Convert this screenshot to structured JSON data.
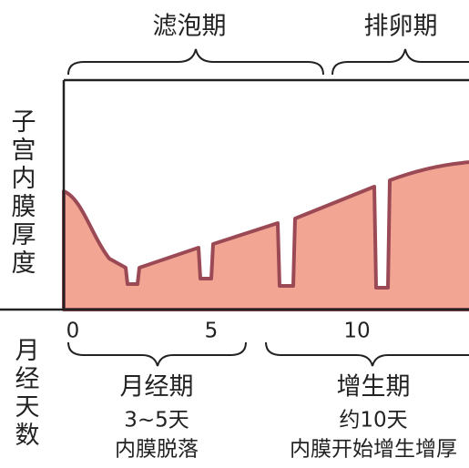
{
  "phases": [
    {
      "label": "滤泡期"
    },
    {
      "label": "排卵期"
    }
  ],
  "y_axis_label": "子宫内膜厚度",
  "x_axis_label": "月经天数",
  "x_ticks": [
    0,
    5,
    10
  ],
  "stages": [
    {
      "title": "月经期",
      "duration": "3~5天",
      "description": "内膜脱落"
    },
    {
      "title": "增生期",
      "duration": "约10天",
      "description": "内膜开始增生增厚"
    }
  ]
}
